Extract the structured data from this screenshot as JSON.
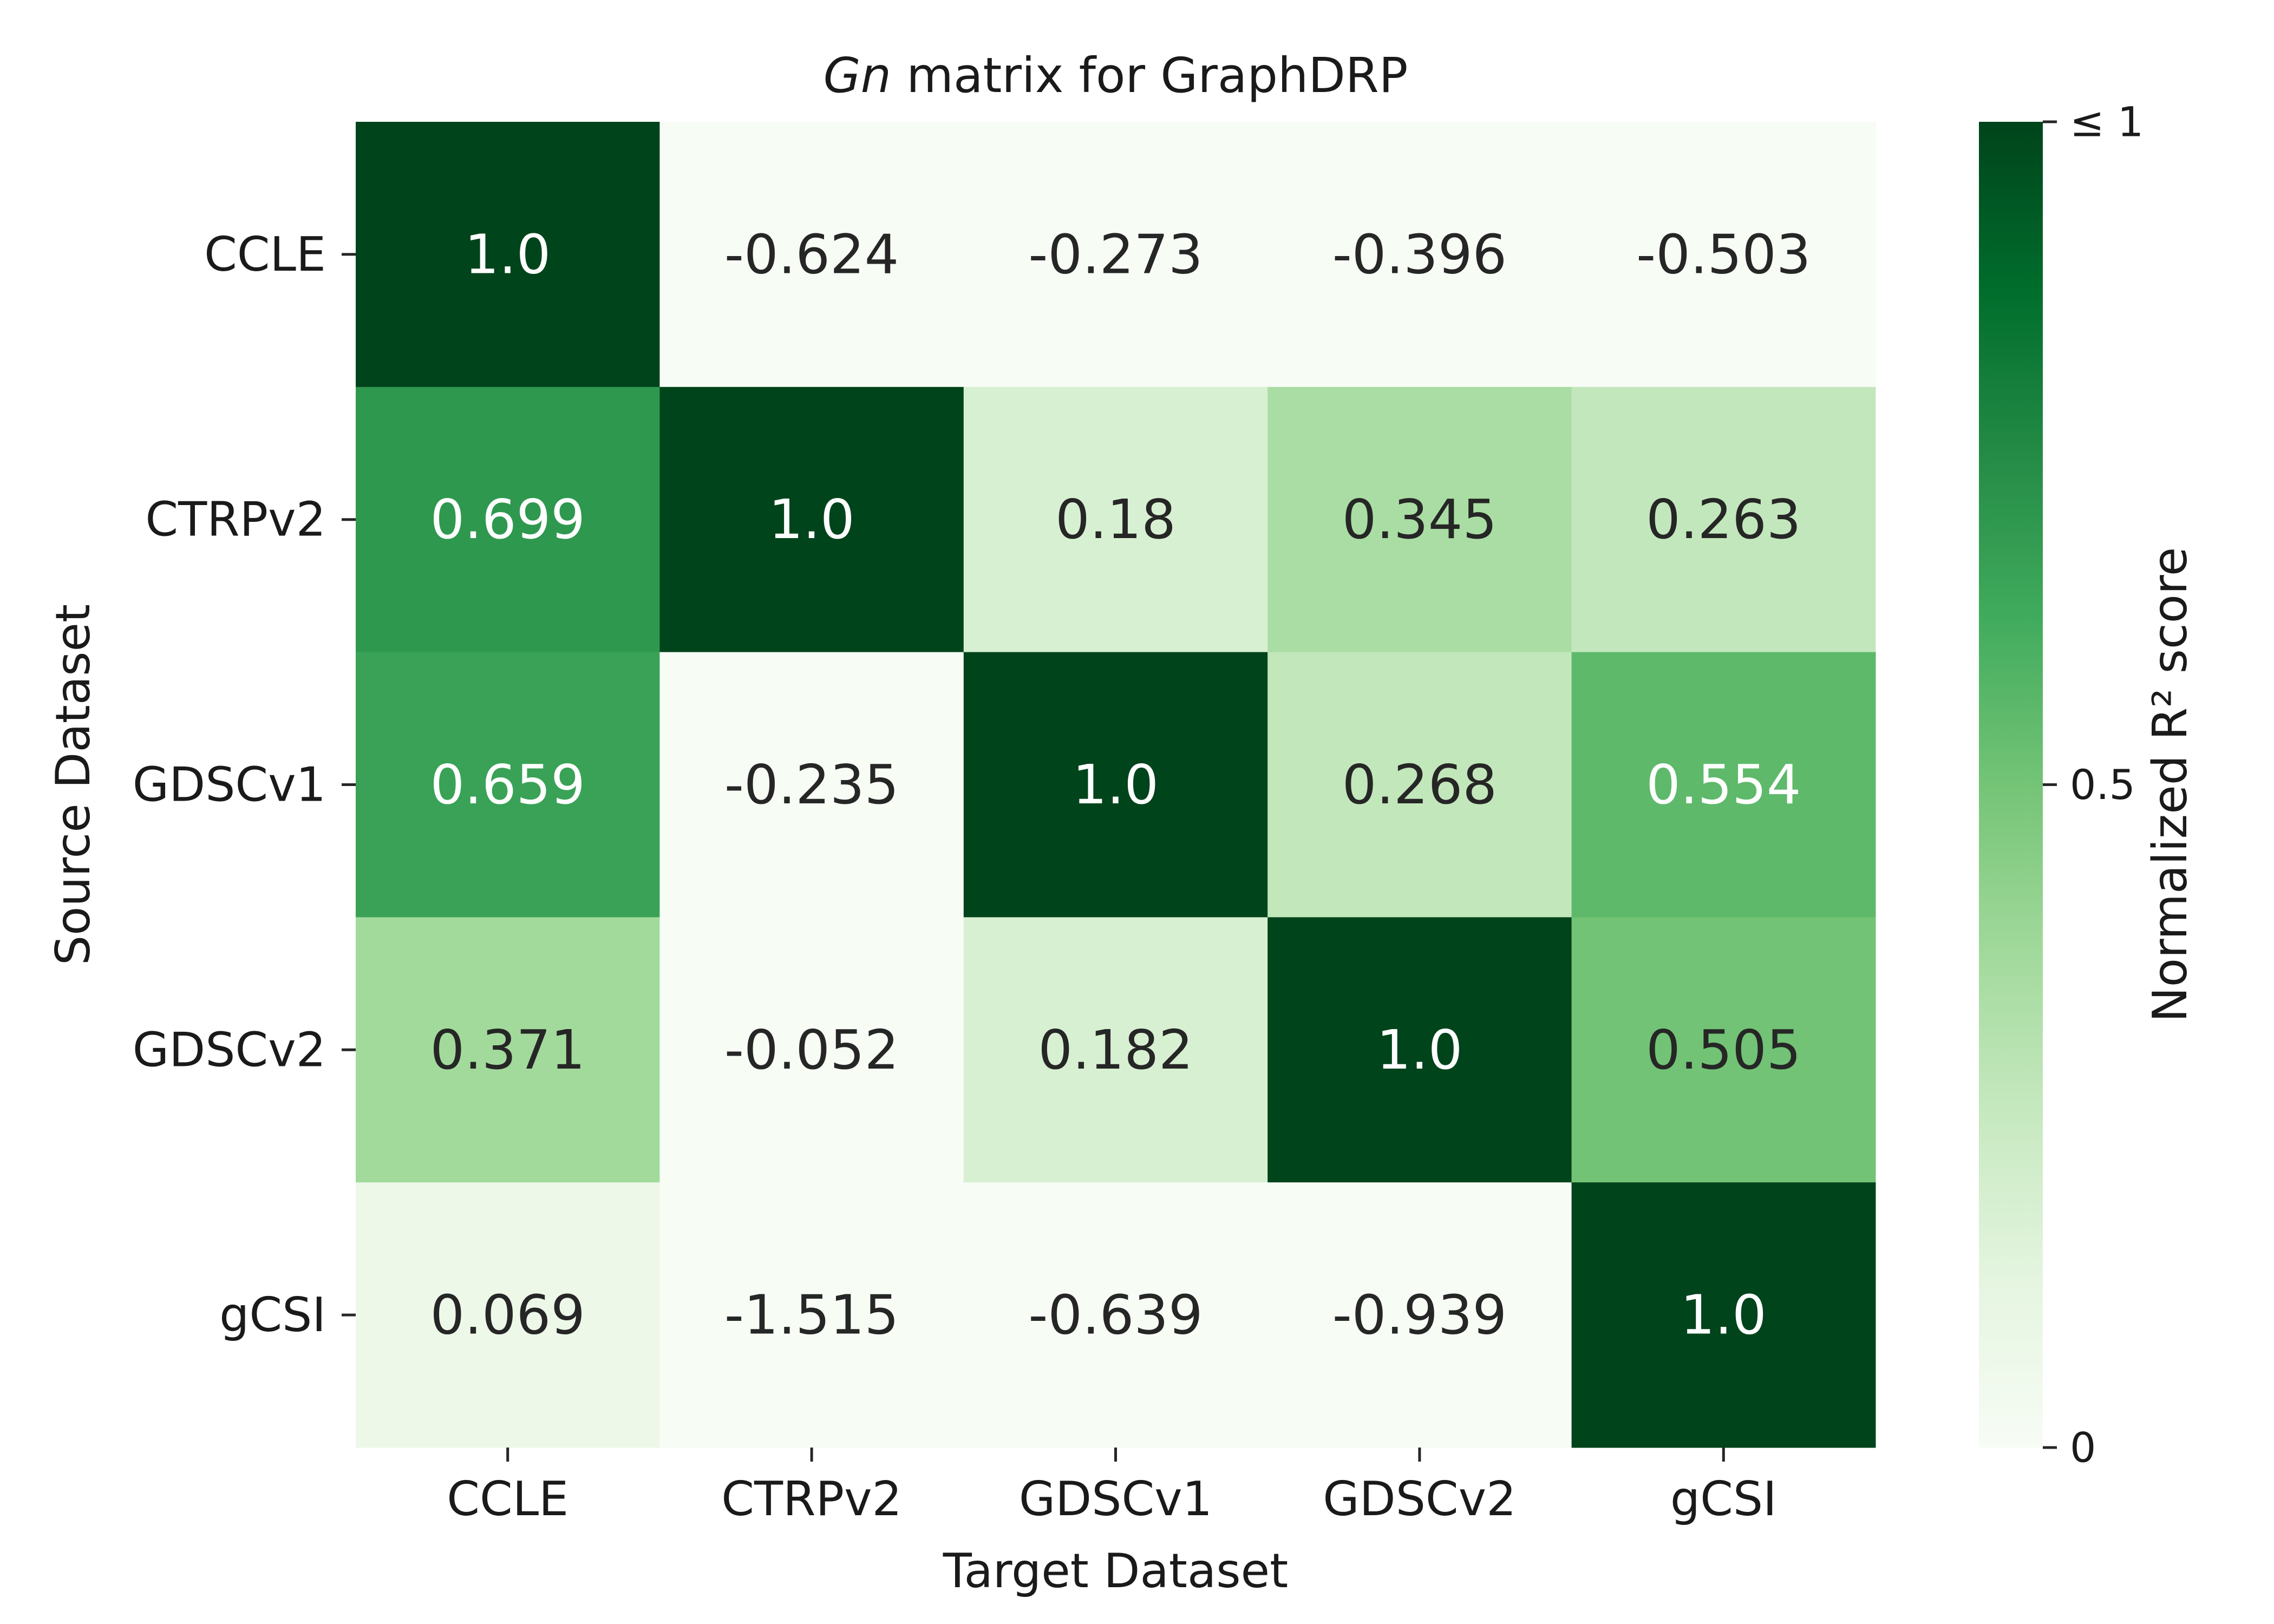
{
  "chart_data": {
    "type": "heatmap",
    "title_italic": "Gn",
    "title_rest": " matrix for GraphDRP",
    "xlabel": "Target Dataset",
    "ylabel": "Source Dataset",
    "x_categories": [
      "CCLE",
      "CTRPv2",
      "GDSCv1",
      "GDSCv2",
      "gCSI"
    ],
    "y_categories": [
      "CCLE",
      "CTRPv2",
      "GDSCv1",
      "GDSCv2",
      "gCSI"
    ],
    "values": [
      [
        1.0,
        -0.624,
        -0.273,
        -0.396,
        -0.503
      ],
      [
        0.699,
        1.0,
        0.18,
        0.345,
        0.263
      ],
      [
        0.659,
        -0.235,
        1.0,
        0.268,
        0.554
      ],
      [
        0.371,
        -0.052,
        0.182,
        1.0,
        0.505
      ],
      [
        0.069,
        -1.515,
        -0.639,
        -0.939,
        1.0
      ]
    ],
    "cell_labels": [
      [
        "1.0",
        "-0.624",
        "-0.273",
        "-0.396",
        "-0.503"
      ],
      [
        "0.699",
        "1.0",
        "0.18",
        "0.345",
        "0.263"
      ],
      [
        "0.659",
        "-0.235",
        "1.0",
        "0.268",
        "0.554"
      ],
      [
        "0.371",
        "-0.052",
        "0.182",
        "1.0",
        "0.505"
      ],
      [
        "0.069",
        "-1.515",
        "-0.639",
        "-0.939",
        "1.0"
      ]
    ],
    "color_scale": {
      "name": "Greens",
      "min": 0,
      "max": 1,
      "label": "Normalized R² score",
      "ticks": [
        {
          "value": 1,
          "label": "≤ 1"
        },
        {
          "value": 0.5,
          "label": "0.5"
        },
        {
          "value": 0,
          "label": "0"
        }
      ]
    },
    "grid": false,
    "colorbar_placement": "right"
  },
  "colors": {
    "greens_stops": [
      "#f7fcf5",
      "#e5f5e0",
      "#c7e9c0",
      "#a1d99b",
      "#74c476",
      "#41ab5d",
      "#238b45",
      "#006d2c",
      "#00441b"
    ],
    "text_dark": "#262626",
    "text_light": "#ffffff"
  }
}
